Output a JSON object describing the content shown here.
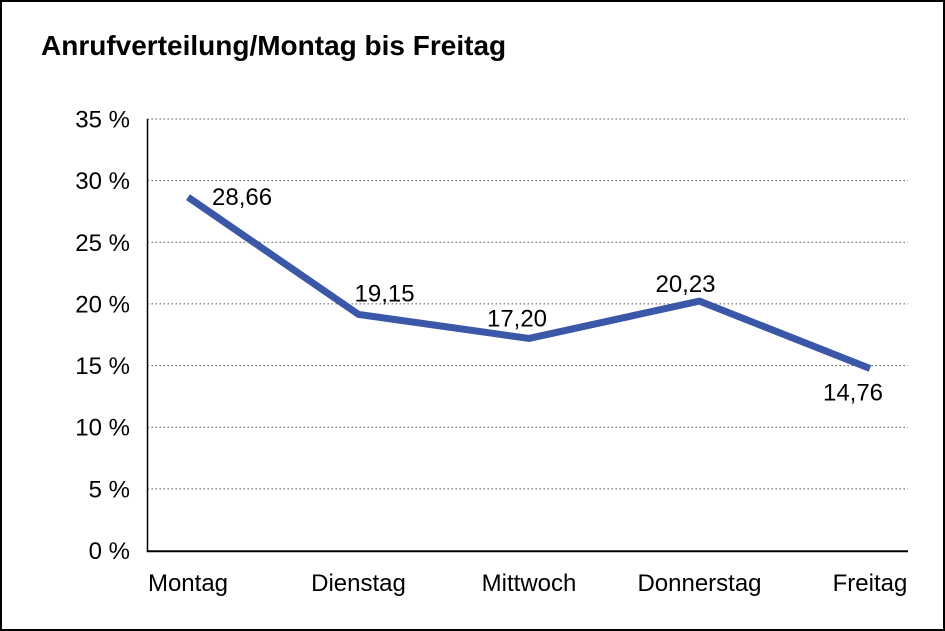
{
  "page": {
    "background": "#ffffff",
    "border_color": "#000000"
  },
  "chart_data": {
    "type": "line",
    "title": "Anrufverteilung/Montag bis Freitag",
    "categories": [
      "Montag",
      "Dienstag",
      "Mittwoch",
      "Donnerstag",
      "Freitag"
    ],
    "series": [
      {
        "name": "Anrufverteilung",
        "values": [
          28.66,
          19.15,
          17.2,
          20.23,
          14.76
        ],
        "color": "#3A57A8"
      }
    ],
    "data_labels": [
      "28,66",
      "19,15",
      "17,20",
      "20,23",
      "14,76"
    ],
    "xlabel": "",
    "ylabel": "",
    "ylim": [
      0,
      35
    ],
    "ytick_step": 5,
    "ytick_labels": [
      "0 %",
      "5 %",
      "10 %",
      "15 %",
      "20 %",
      "25 %",
      "30 %",
      "35 %"
    ],
    "grid": "horizontal-dotted",
    "gridline_color": "#555555",
    "axis_color": "#000000",
    "text_color": "#000000",
    "legend": "none"
  }
}
